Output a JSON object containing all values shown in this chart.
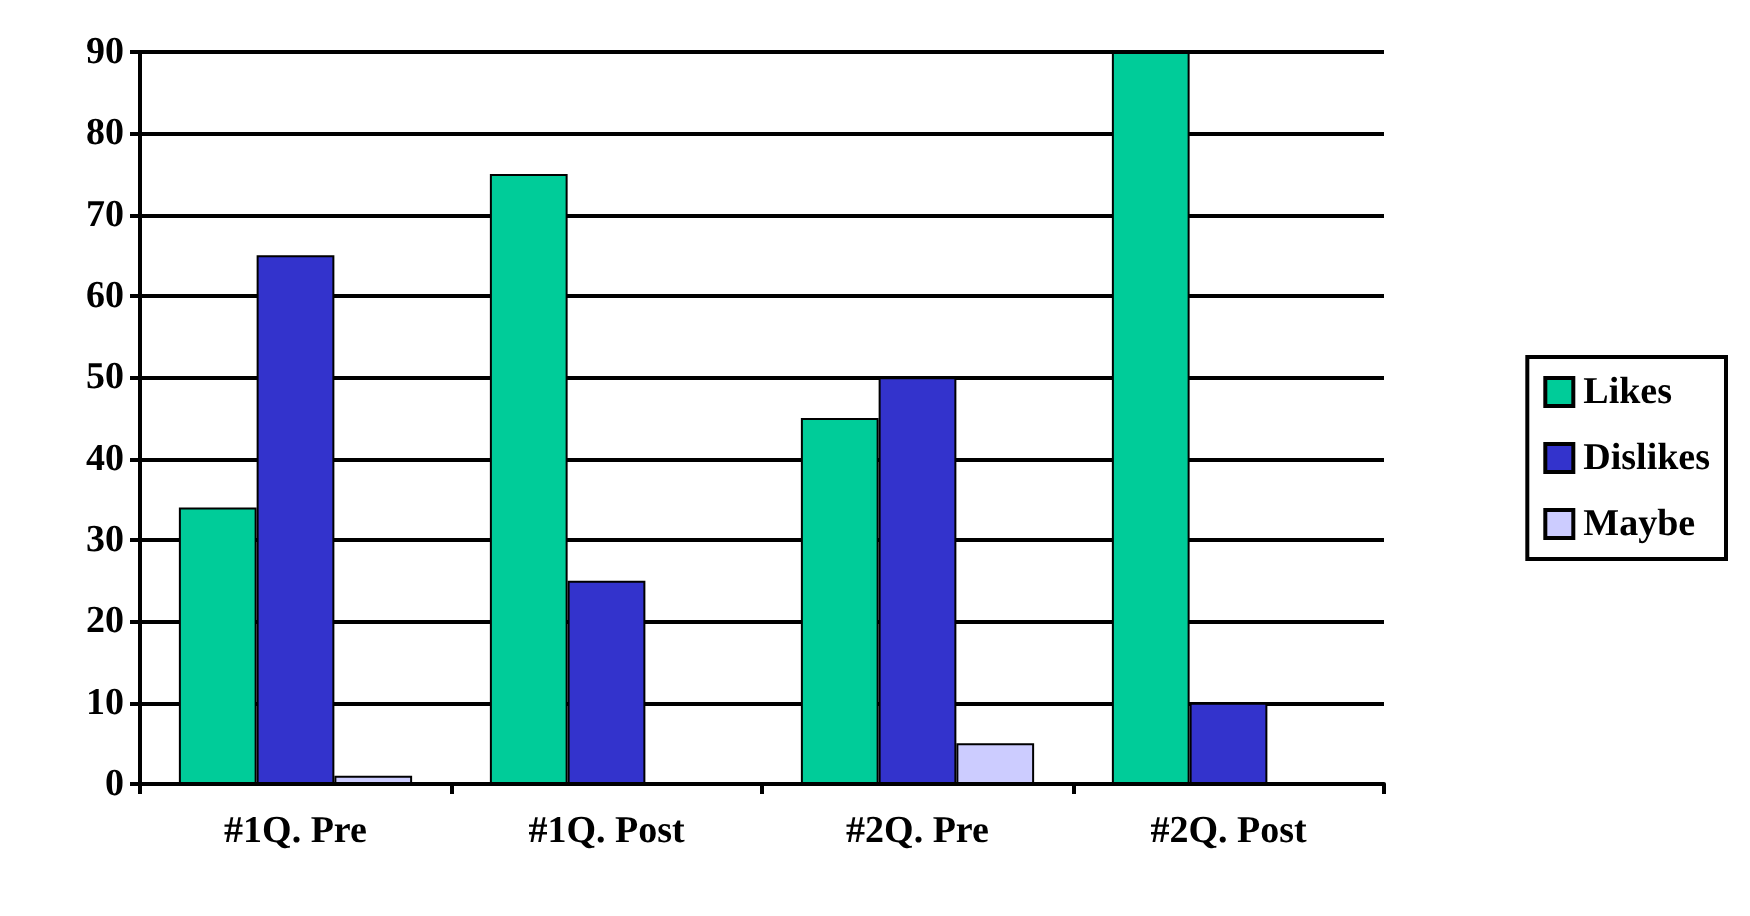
{
  "chart_data": {
    "type": "bar",
    "categories": [
      "#1Q. Pre",
      "#1Q. Post",
      "#2Q. Pre",
      "#2Q. Post"
    ],
    "series": [
      {
        "name": "Likes",
        "color": "#00cc99",
        "values": [
          34,
          75,
          45,
          90
        ]
      },
      {
        "name": "Dislikes",
        "color": "#3333cc",
        "values": [
          65,
          25,
          50,
          10
        ]
      },
      {
        "name": "Maybe",
        "color": "#ccccff",
        "values": [
          1,
          0,
          5,
          0
        ]
      }
    ],
    "ylim": [
      0,
      90
    ],
    "yticks": [
      0,
      10,
      20,
      30,
      40,
      50,
      60,
      70,
      80,
      90
    ],
    "grid": "y",
    "legend": "right"
  }
}
